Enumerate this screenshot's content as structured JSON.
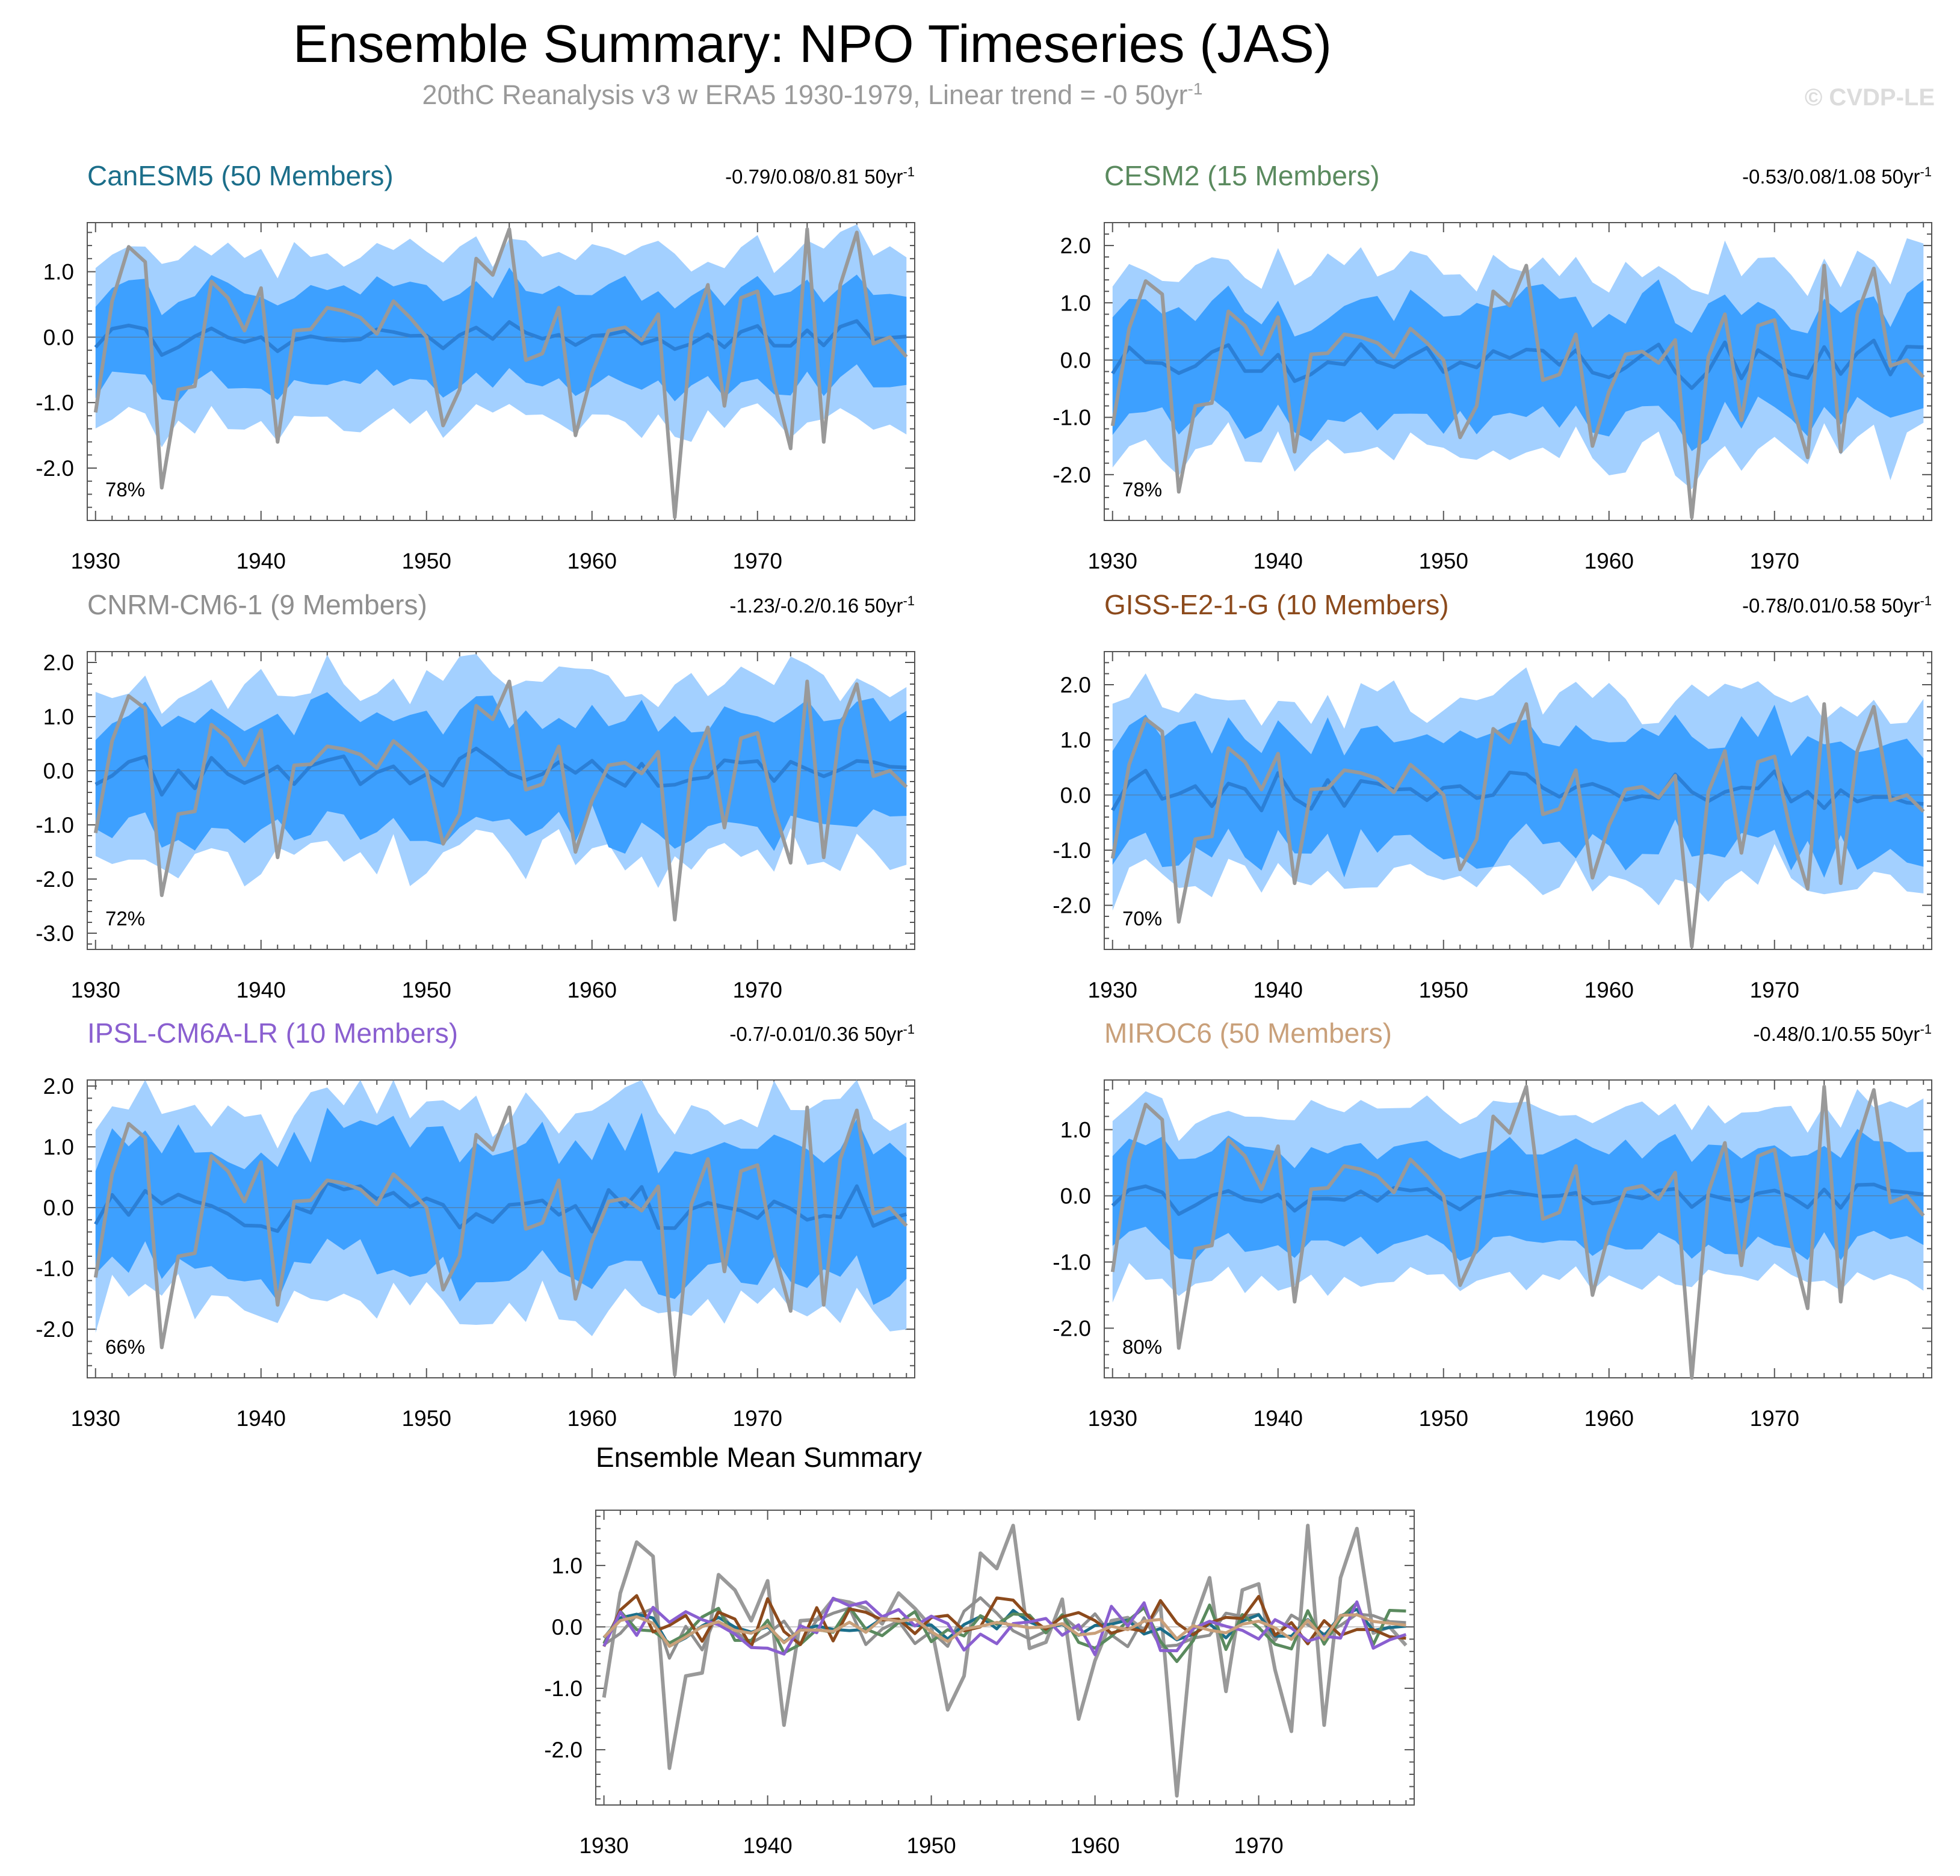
{
  "page": {
    "title": "Ensemble Summary: NPO Timeseries (JAS)",
    "subtitle_main": "20thC Reanalysis v3 w ERA5 1930-1979, Linear trend = -0 50yr",
    "subtitle_sup": "-1",
    "watermark": "© CVDP-LE"
  },
  "colors": {
    "outer_band": "#a3d0ff",
    "inner_band": "#3da0ff",
    "ens_mean_line": "#2b7fd6",
    "obs_line": "#999999",
    "axis": "#000000"
  },
  "chart_data": [
    {
      "type": "line",
      "id": "canesm5",
      "title": "CanESM5 (50 Members)",
      "title_color": "#1b6e8a",
      "trend": "-0.79/0.08/0.81 50yr",
      "trend_sup": "-1",
      "percent": "78%",
      "ylim": [
        -2.8,
        1.75
      ],
      "yticks": [
        1.0,
        0.0,
        -1.0,
        -2.0
      ],
      "ytick_labels": [
        "1.0",
        "0.0",
        "-1.0",
        "-2.0"
      ],
      "band_outer": [
        1.1,
        1.5
      ],
      "band_inner": [
        0.6,
        0.85
      ],
      "mean_amp": 0.12,
      "seed": 11
    },
    {
      "type": "line",
      "id": "cesm2",
      "title": "CESM2 (15 Members)",
      "title_color": "#5a8a5e",
      "trend": "-0.53/0.08/1.08 50yr",
      "trend_sup": "-1",
      "percent": "78%",
      "ylim": [
        -2.8,
        2.4
      ],
      "yticks": [
        2.0,
        1.0,
        0.0,
        -1.0,
        -2.0
      ],
      "ytick_labels": [
        "2.0",
        "1.0",
        "0.0",
        "-1.0",
        "-2.0"
      ],
      "band_outer": [
        1.3,
        1.9
      ],
      "band_inner": [
        0.75,
        1.2
      ],
      "mean_amp": 0.28,
      "seed": 23
    },
    {
      "type": "line",
      "id": "cnrm",
      "title": "CNRM-CM6-1 (9 Members)",
      "title_color": "#8f8f8f",
      "trend": "-1.23/-0.2/0.16 50yr",
      "trend_sup": "-1",
      "percent": "72%",
      "ylim": [
        -3.3,
        2.2
      ],
      "yticks": [
        2.0,
        1.0,
        0.0,
        -1.0,
        -2.0,
        -3.0
      ],
      "ytick_labels": [
        "2.0",
        "1.0",
        "0.0",
        "-1.0",
        "-2.0",
        "-3.0"
      ],
      "band_outer": [
        1.2,
        2.0
      ],
      "band_inner": [
        0.8,
        1.3
      ],
      "mean_amp": 0.32,
      "seed": 37
    },
    {
      "type": "line",
      "id": "giss",
      "title": "GISS-E2-1-G (10 Members)",
      "title_color": "#8c4a1c",
      "trend": "-0.78/0.01/0.58 50yr",
      "trend_sup": "-1",
      "percent": "70%",
      "ylim": [
        -2.8,
        2.6
      ],
      "yticks": [
        2.0,
        1.0,
        0.0,
        -1.0,
        -2.0
      ],
      "ytick_labels": [
        "2.0",
        "1.0",
        "0.0",
        "-1.0",
        "-2.0"
      ],
      "band_outer": [
        1.3,
        2.0
      ],
      "band_inner": [
        0.8,
        1.3
      ],
      "mean_amp": 0.38,
      "seed": 51
    },
    {
      "type": "line",
      "id": "ipsl",
      "title": "IPSL-CM6A-LR (10 Members)",
      "title_color": "#8a5fd0",
      "trend": "-0.7/-0.01/0.36 50yr",
      "trend_sup": "-1",
      "percent": "66%",
      "ylim": [
        -2.8,
        2.1
      ],
      "yticks": [
        2.0,
        1.0,
        0.0,
        -1.0,
        -2.0
      ],
      "ytick_labels": [
        "2.0",
        "1.0",
        "0.0",
        "-1.0",
        "-2.0"
      ],
      "band_outer": [
        1.3,
        2.0
      ],
      "band_inner": [
        0.8,
        1.3
      ],
      "mean_amp": 0.38,
      "seed": 67
    },
    {
      "type": "line",
      "id": "miroc6",
      "title": "MIROC6 (50 Members)",
      "title_color": "#c9a07a",
      "trend": "-0.48/0.1/0.55 50yr",
      "trend_sup": "-1",
      "percent": "80%",
      "ylim": [
        -2.75,
        1.75
      ],
      "yticks": [
        1.0,
        0.0,
        -1.0,
        -2.0
      ],
      "ytick_labels": [
        "1.0",
        "0.0",
        "-1.0",
        "-2.0"
      ],
      "band_outer": [
        1.1,
        1.5
      ],
      "band_inner": [
        0.6,
        0.85
      ],
      "mean_amp": 0.12,
      "seed": 79
    }
  ],
  "observation": {
    "name": "20thC Reanalysis v3 w ERA5",
    "x": [
      1930,
      1931,
      1932,
      1933,
      1934,
      1935,
      1936,
      1937,
      1938,
      1939,
      1940,
      1941,
      1942,
      1943,
      1944,
      1945,
      1946,
      1947,
      1948,
      1949,
      1950,
      1951,
      1952,
      1953,
      1954,
      1955,
      1956,
      1957,
      1958,
      1959,
      1960,
      1961,
      1962,
      1963,
      1964,
      1965,
      1966,
      1967,
      1968,
      1969,
      1970,
      1971,
      1972,
      1973,
      1974,
      1975,
      1976,
      1977,
      1978,
      1979
    ],
    "values": [
      -1.15,
      0.55,
      1.38,
      1.15,
      -2.3,
      -0.8,
      -0.75,
      0.85,
      0.6,
      0.1,
      0.75,
      -1.6,
      0.1,
      0.12,
      0.45,
      0.4,
      0.3,
      0.05,
      0.55,
      0.3,
      0.0,
      -1.35,
      -0.8,
      1.2,
      0.95,
      1.65,
      -0.35,
      -0.25,
      0.45,
      -1.5,
      -0.55,
      0.1,
      0.15,
      -0.05,
      0.35,
      -2.75,
      0.05,
      0.8,
      -1.05,
      0.6,
      0.7,
      -0.7,
      -1.7,
      1.65,
      -1.6,
      0.8,
      1.6,
      -0.1,
      0.0,
      -0.3
    ]
  },
  "x_axis": {
    "xlim": [
      1929.5,
      1979.5
    ],
    "ticks": [
      1930,
      1940,
      1950,
      1960,
      1970
    ],
    "tick_labels": [
      "1930",
      "1940",
      "1950",
      "1960",
      "1970"
    ]
  },
  "mean_summary": {
    "type": "line",
    "title": "Ensemble Mean Summary",
    "ylim": [
      -2.9,
      1.9
    ],
    "yticks": [
      1.0,
      0.0,
      -1.0,
      -2.0
    ],
    "ytick_labels": [
      "1.0",
      "0.0",
      "-1.0",
      "-2.0"
    ],
    "series_colors": [
      "#1b6e8a",
      "#5a8a5e",
      "#8f8f8f",
      "#8c4a1c",
      "#8a5fd0",
      "#c9a07a"
    ]
  }
}
